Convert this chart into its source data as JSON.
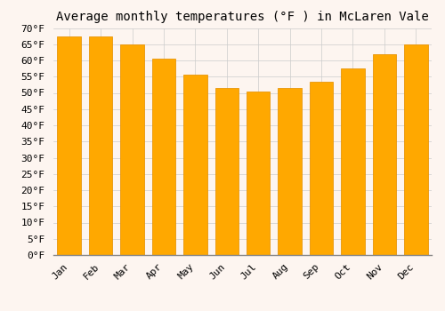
{
  "title": "Average monthly temperatures (°F ) in McLaren Vale",
  "months": [
    "Jan",
    "Feb",
    "Mar",
    "Apr",
    "May",
    "Jun",
    "Jul",
    "Aug",
    "Sep",
    "Oct",
    "Nov",
    "Dec"
  ],
  "values": [
    67.5,
    67.5,
    65.0,
    60.5,
    55.5,
    51.5,
    50.5,
    51.5,
    53.5,
    57.5,
    62.0,
    65.0
  ],
  "bar_color": "#FFA800",
  "bar_edge_color": "#E8960A",
  "background_color": "#FDF5F0",
  "grid_color": "#CCCCCC",
  "ylim": [
    0,
    70
  ],
  "ytick_step": 5,
  "title_fontsize": 10,
  "tick_fontsize": 8,
  "font_family": "monospace"
}
